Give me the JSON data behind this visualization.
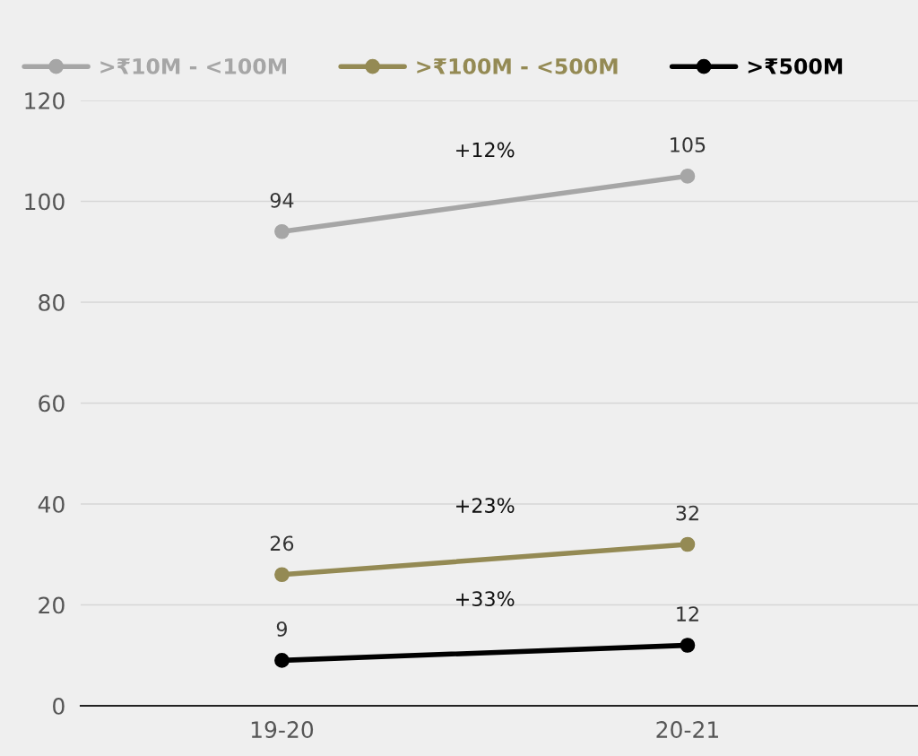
{
  "chart_data": {
    "type": "line",
    "categories": [
      "19-20",
      "20-21"
    ],
    "series": [
      {
        "name": ">₹10M - <100M",
        "color": "#a6a6a6",
        "values": [
          94,
          105
        ]
      },
      {
        "name": ">₹100M - <500M",
        "color": "#948a54",
        "values": [
          26,
          32
        ]
      },
      {
        "name": ">₹500M",
        "color": "#000000",
        "values": [
          9,
          12
        ]
      }
    ],
    "ylim": [
      0,
      120
    ],
    "yticks": [
      0,
      20,
      40,
      60,
      80,
      100,
      120
    ],
    "grid": "y",
    "legend": "top left",
    "marker": "circle",
    "line_style": "solid",
    "data_labels": true,
    "annotations": [
      "+12%",
      "+23%",
      "+33%"
    ]
  }
}
